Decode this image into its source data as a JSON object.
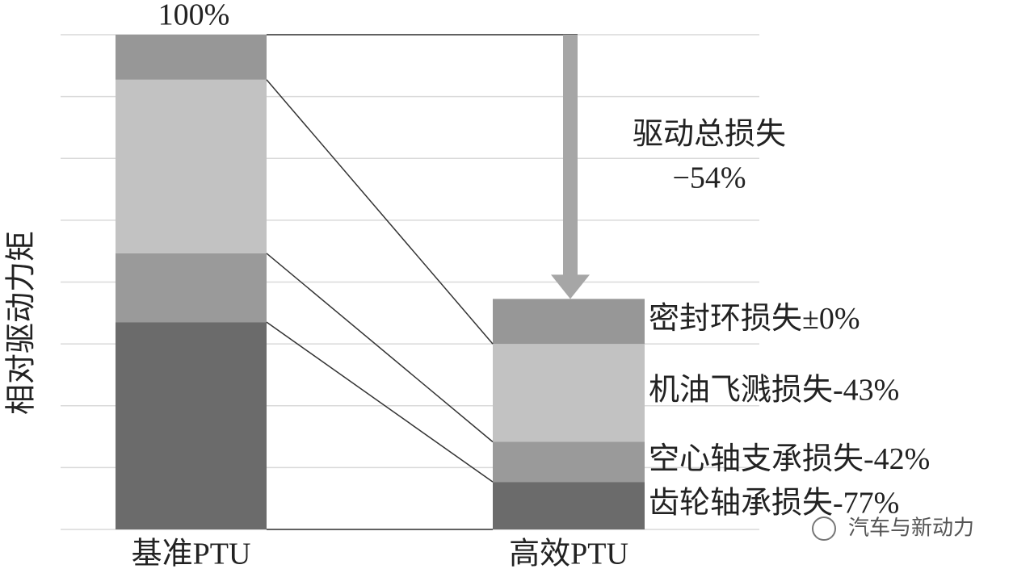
{
  "chart_data": {
    "type": "stacked_bar",
    "y_label": "相对驱动力矩",
    "categories": [
      "基准PTU",
      "高效PTU"
    ],
    "series": [
      {
        "name": "齿轮轴承损失-77%",
        "color": "#6b6b6b",
        "values": [
          41.9,
          9.6
        ]
      },
      {
        "name": "空心轴支承损失-42%",
        "color": "#9a9a9a",
        "values": [
          13.9,
          8.1
        ]
      },
      {
        "name": "机油飞溅损失-43%",
        "color": "#c2c2c2",
        "values": [
          35.1,
          19.8
        ]
      },
      {
        "name": "密封环损失±0%",
        "color": "#979797",
        "values": [
          9.1,
          9.1
        ]
      }
    ],
    "total_label": "100%",
    "annotation": [
      "驱动总损失",
      "−54%"
    ],
    "watermark": "汽车与新动力",
    "ylim": [
      0,
      100
    ],
    "yticks": [
      0,
      12.5,
      25,
      37.5,
      50,
      62.5,
      75,
      87.5,
      100
    ],
    "grid": true
  }
}
